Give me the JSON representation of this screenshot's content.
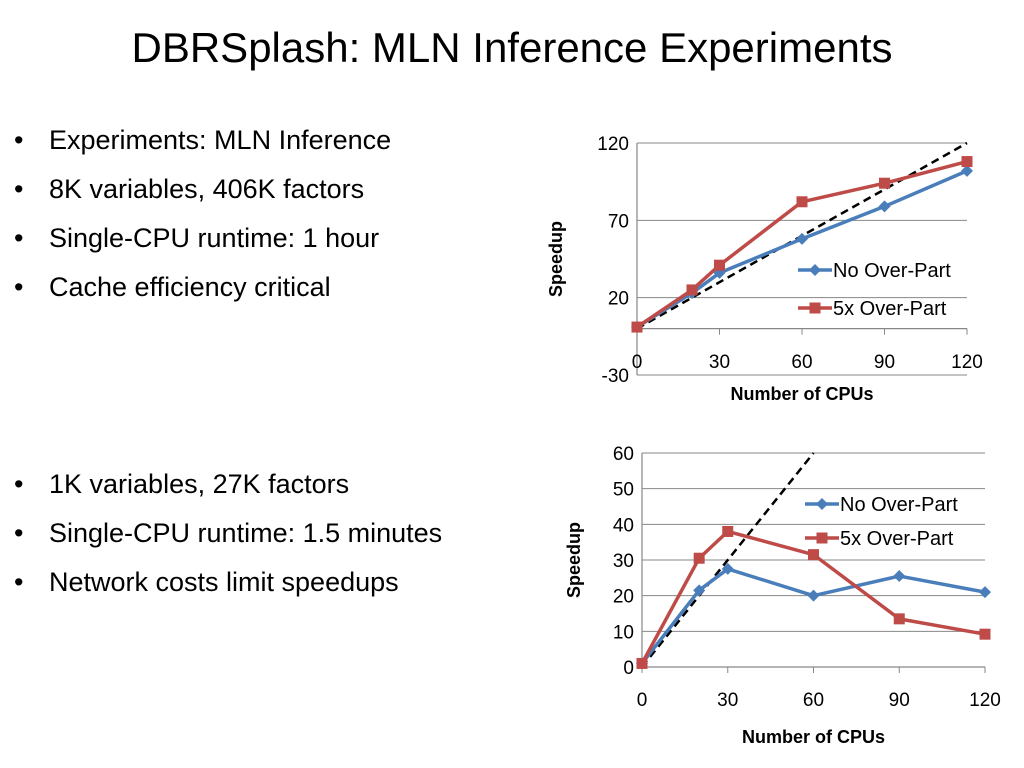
{
  "title": "DBRSplash:  MLN Inference Experiments",
  "bullets_top": [
    "Experiments:  MLN Inference",
    "8K variables, 406K factors",
    "Single-CPU runtime:   1 hour",
    "Cache efficiency critical"
  ],
  "bullets_bottom": [
    "1K variables, 27K factors",
    "Single-CPU runtime:  1.5 minutes",
    "Network costs limit speedups"
  ],
  "bullet_glyph": "•",
  "colors": {
    "no_over_part": "#4a7ebb",
    "over_part": "#be4b48",
    "ideal": "#000000",
    "grid": "#878787"
  },
  "chart_data": [
    {
      "type": "scatter",
      "xlabel": "Number of CPUs",
      "ylabel": "Speedup",
      "xlim": [
        0,
        120
      ],
      "ylim": [
        -30,
        120
      ],
      "xticks": [
        0,
        30,
        60,
        90,
        120
      ],
      "yticks": [
        -30,
        20,
        70,
        120
      ],
      "legend_position": "right",
      "series": [
        {
          "name": "No Over-Part",
          "marker": "diamond",
          "color": "#4a7ebb",
          "x": [
            0,
            20,
            30,
            60,
            90,
            120
          ],
          "y": [
            1,
            23,
            36,
            58,
            79,
            102
          ]
        },
        {
          "name": "5x Over-Part",
          "marker": "square",
          "color": "#be4b48",
          "x": [
            0,
            20,
            30,
            60,
            90,
            120
          ],
          "y": [
            1,
            25,
            41,
            82,
            94,
            108
          ]
        }
      ],
      "reference_line": {
        "style": "dashed",
        "x": [
          0,
          120
        ],
        "y": [
          0,
          120
        ]
      }
    },
    {
      "type": "scatter",
      "xlabel": "Number of CPUs",
      "ylabel": "Speedup",
      "xlim": [
        0,
        120
      ],
      "ylim": [
        0,
        60
      ],
      "xticks": [
        0,
        30,
        60,
        90,
        120
      ],
      "yticks": [
        0,
        10,
        20,
        30,
        40,
        50,
        60
      ],
      "legend_position": "top-right",
      "series": [
        {
          "name": "No Over-Part",
          "marker": "diamond",
          "color": "#4a7ebb",
          "x": [
            0,
            20,
            30,
            60,
            90,
            120
          ],
          "y": [
            1,
            21.5,
            27.5,
            20,
            25.5,
            21
          ]
        },
        {
          "name": "5x Over-Part",
          "marker": "square",
          "color": "#be4b48",
          "x": [
            0,
            20,
            30,
            60,
            90,
            120
          ],
          "y": [
            1,
            30.5,
            38,
            31.5,
            13.5,
            9.2
          ]
        }
      ],
      "reference_line": {
        "style": "dashed",
        "x": [
          0,
          60
        ],
        "y": [
          0,
          60
        ]
      }
    }
  ]
}
